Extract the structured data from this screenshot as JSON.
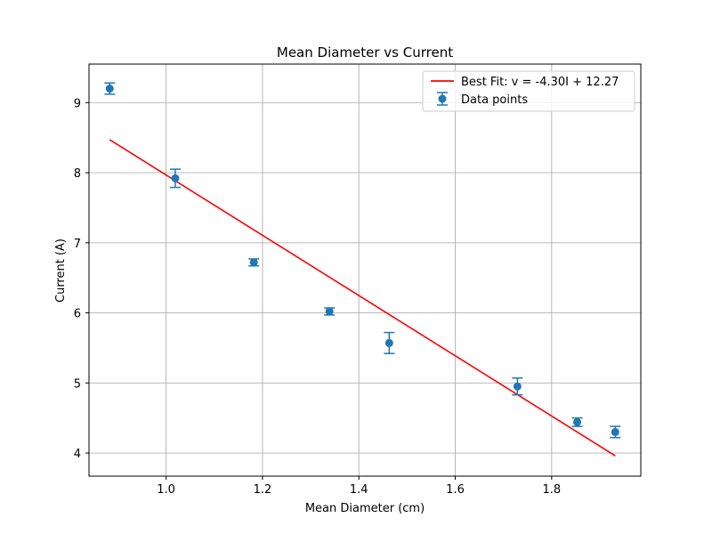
{
  "chart_data": {
    "type": "scatter",
    "title": "Mean Diameter vs Current",
    "xlabel": "Mean Diameter (cm)",
    "ylabel": "Current (A)",
    "xlim": [
      0.84,
      1.985
    ],
    "ylim": [
      3.67,
      9.55
    ],
    "xticks": [
      1.0,
      1.2,
      1.4,
      1.6,
      1.8
    ],
    "xtick_labels": [
      "1.0",
      "1.2",
      "1.4",
      "1.6",
      "1.8"
    ],
    "yticks": [
      4,
      5,
      6,
      7,
      8,
      9
    ],
    "ytick_labels": [
      "4",
      "5",
      "6",
      "7",
      "8",
      "9"
    ],
    "grid": true,
    "legend_position": "top-right",
    "series": [
      {
        "name": "Data points",
        "kind": "errorbar-scatter",
        "color": "#1f77b4",
        "x": [
          0.883,
          1.019,
          1.182,
          1.339,
          1.463,
          1.729,
          1.853,
          1.932
        ],
        "y": [
          9.2,
          7.92,
          6.72,
          6.02,
          5.57,
          4.95,
          4.44,
          4.3
        ],
        "yerr": [
          0.08,
          0.13,
          0.05,
          0.05,
          0.15,
          0.12,
          0.06,
          0.08
        ]
      },
      {
        "name": "Best Fit: v = -4.30I + 12.27",
        "kind": "line",
        "color": "#ff0000",
        "x": [
          0.883,
          1.932
        ],
        "y": [
          8.47,
          3.96
        ]
      }
    ]
  }
}
